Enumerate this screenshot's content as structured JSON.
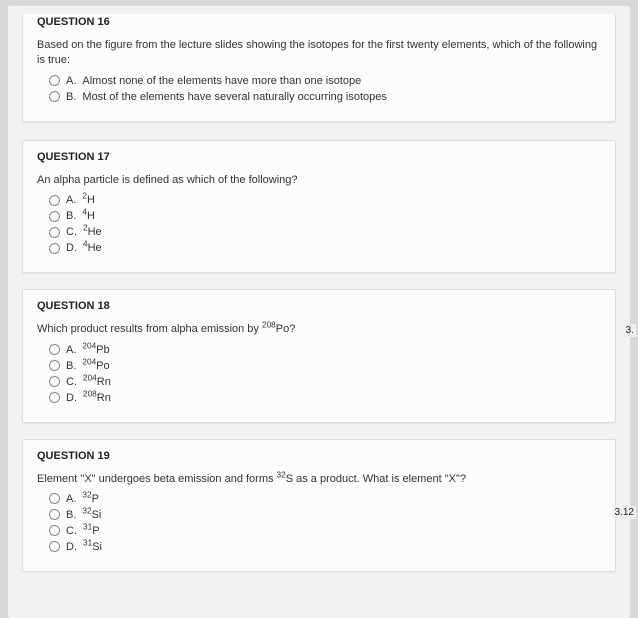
{
  "q16": {
    "title": "QUESTION 16",
    "stem": "Based on the figure from the lecture slides showing the isotopes for the first twenty elements, which of the following is true:",
    "opts": [
      {
        "letter": "A.",
        "text": "Almost none of the elements have more than one isotope"
      },
      {
        "letter": "B.",
        "text": "Most of the elements have several naturally occurring isotopes"
      }
    ]
  },
  "q17": {
    "title": "QUESTION 17",
    "stem": "An alpha particle is defined as which of the following?",
    "opts": [
      {
        "letter": "A.",
        "pre": "2",
        "el": "H"
      },
      {
        "letter": "B.",
        "pre": "4",
        "el": "H"
      },
      {
        "letter": "C.",
        "pre": "2",
        "el": "He"
      },
      {
        "letter": "D.",
        "pre": "4",
        "el": "He"
      }
    ]
  },
  "q18": {
    "title": "QUESTION 18",
    "stem_a": "Which product results from alpha emission by ",
    "stem_sup": "208",
    "stem_b": "Po?",
    "opts": [
      {
        "letter": "A.",
        "pre": "204",
        "el": "Pb"
      },
      {
        "letter": "B.",
        "pre": "204",
        "el": "Po"
      },
      {
        "letter": "C.",
        "pre": "204",
        "el": "Rn"
      },
      {
        "letter": "D.",
        "pre": "208",
        "el": "Rn"
      }
    ]
  },
  "q19": {
    "title": "QUESTION 19",
    "stem_a": "Element \"X\" undergoes beta emission and forms ",
    "stem_sup": "32",
    "stem_b": "S as a product. What is element \"X\"?",
    "opts": [
      {
        "letter": "A.",
        "pre": "32",
        "el": "P"
      },
      {
        "letter": "B.",
        "pre": "32",
        "el": "Si"
      },
      {
        "letter": "C.",
        "pre": "31",
        "el": "P"
      },
      {
        "letter": "D.",
        "pre": "31",
        "el": "Si"
      }
    ]
  },
  "side": {
    "a": "3.",
    "b": "3.12"
  },
  "colors": {
    "page_bg": "#f2f2f2",
    "card_bg": "#fcfcfc",
    "text": "#333333"
  }
}
